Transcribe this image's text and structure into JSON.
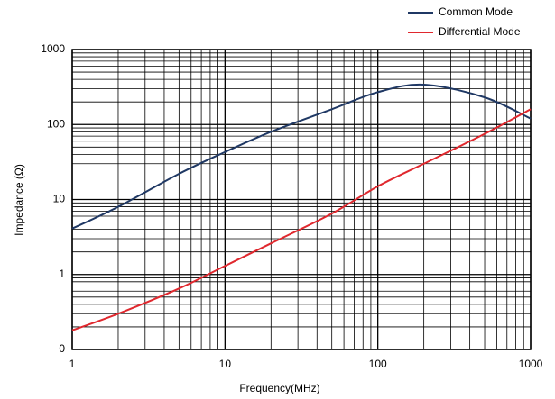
{
  "chart_data": {
    "type": "line",
    "xlabel": "Frequency(MHz)",
    "ylabel": "Impedance (Ω)",
    "x": [
      1,
      2,
      5,
      10,
      20,
      50,
      100,
      200,
      500,
      1000
    ],
    "series": [
      {
        "name": "Common Mode",
        "color": "#1f3864",
        "values": [
          4.1,
          8,
          22,
          43,
          80,
          160,
          270,
          340,
          230,
          120
        ]
      },
      {
        "name": "Differential Mode",
        "color": "#e0282e",
        "values": [
          0.18,
          0.3,
          0.65,
          1.3,
          2.6,
          6.5,
          15,
          30,
          75,
          160
        ]
      }
    ],
    "xlim": [
      1,
      1000
    ],
    "xticks": [
      1,
      10,
      100,
      1000
    ],
    "ylim": [
      0.1,
      1000
    ],
    "yticks": [
      {
        "value": 0.1,
        "label": "0"
      },
      1,
      10,
      100,
      1000
    ],
    "xscale": "log",
    "yscale": "log",
    "grid": true,
    "legend": "upper right"
  }
}
